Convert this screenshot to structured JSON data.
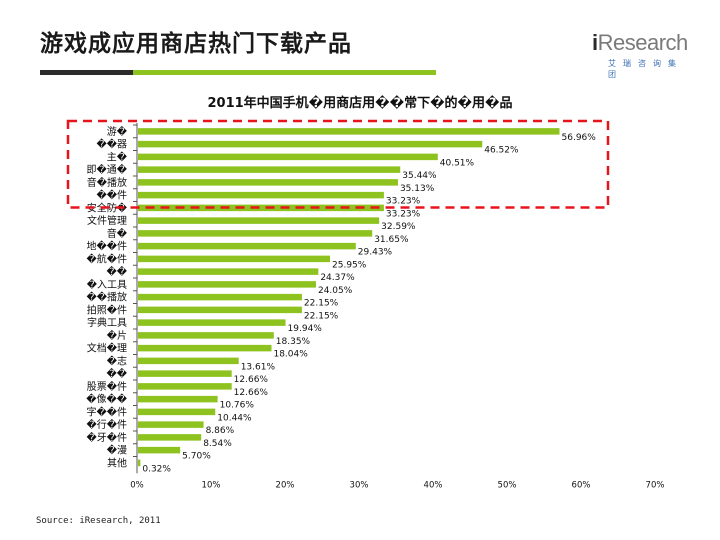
{
  "page": {
    "title": "游戏成应用商店热门下载产品",
    "source": "Source: iResearch, 2011",
    "logo": {
      "brand_i": "i",
      "brand_rest": "Research",
      "subtitle": "艾瑞咨询集团"
    }
  },
  "colors": {
    "bar": "#8dc21f",
    "highlight": "#e8141b",
    "accent_dark": "#2b2b2b"
  },
  "chart_data": {
    "type": "bar",
    "orientation": "horizontal",
    "title": "2011年中国手机�用商店用��常下�的�用�品",
    "categories": [
      "游�",
      "��器",
      "主�",
      "即�通�",
      "音�播放",
      "��件",
      "安全防�",
      "文件管理",
      "音�",
      "地��件",
      "�航�件",
      "��",
      "�入工具",
      "��播放",
      "拍照�件",
      "字典工具",
      "�片",
      "文档�理",
      "�志",
      "��",
      "股票�件",
      "�像��",
      "字��件",
      "�行�件",
      "�牙�件",
      "�漫",
      "其他"
    ],
    "values": [
      56.96,
      46.52,
      40.51,
      35.44,
      35.13,
      33.23,
      33.23,
      32.59,
      31.65,
      29.43,
      25.95,
      24.37,
      24.05,
      22.15,
      22.15,
      19.94,
      18.35,
      18.04,
      13.61,
      12.66,
      12.66,
      10.76,
      10.44,
      8.86,
      8.54,
      5.7,
      0.32
    ],
    "value_labels": [
      "56.96%",
      "46.52%",
      "40.51%",
      "35.44%",
      "35.13%",
      "33.23%",
      "33.23%",
      "32.59%",
      "31.65%",
      "29.43%",
      "25.95%",
      "24.37%",
      "24.05%",
      "22.15%",
      "22.15%",
      "19.94%",
      "18.35%",
      "18.04%",
      "13.61%",
      "12.66%",
      "12.66%",
      "10.76%",
      "10.44%",
      "8.86%",
      "8.54%",
      "5.70%",
      "0.32%"
    ],
    "xlim": [
      0,
      70
    ],
    "x_ticks": [
      0,
      10,
      20,
      30,
      40,
      50,
      60,
      70
    ],
    "x_tick_labels": [
      "0%",
      "10%",
      "20%",
      "30%",
      "40%",
      "50%",
      "60%",
      "70%"
    ],
    "highlight_range": [
      0,
      5
    ],
    "grid": false
  }
}
